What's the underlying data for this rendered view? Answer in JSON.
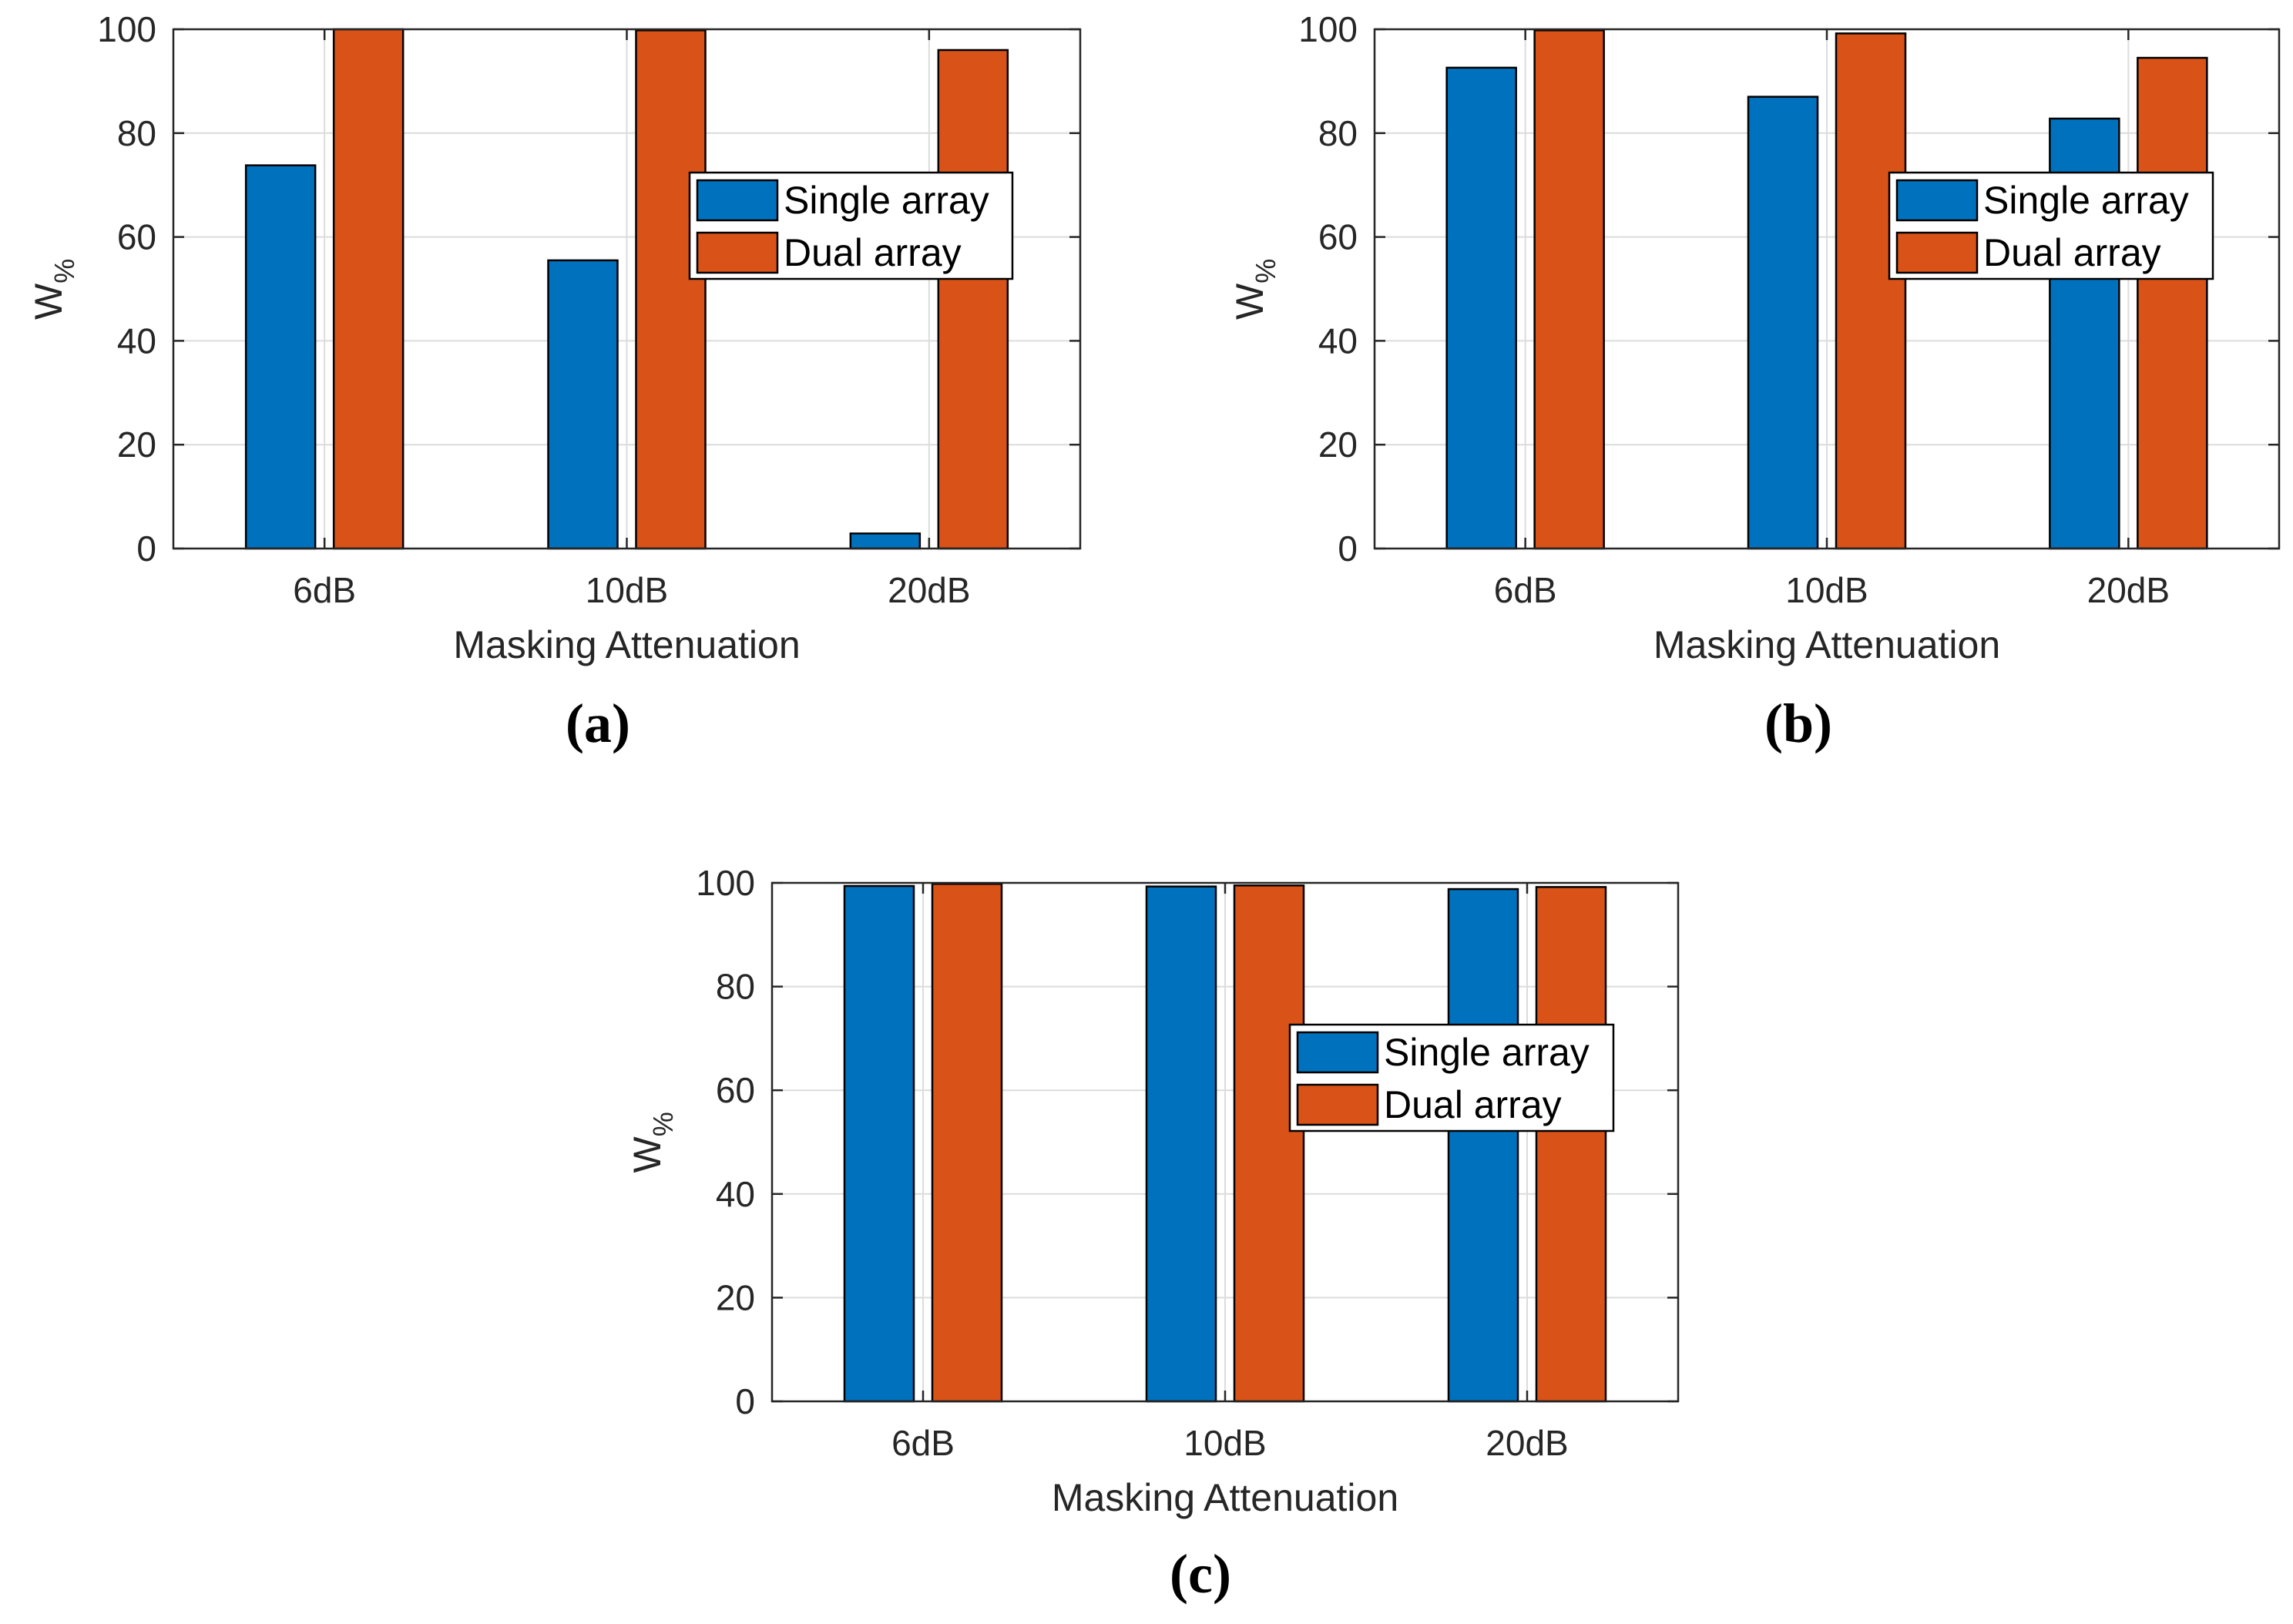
{
  "colors": {
    "single": "#0072BD",
    "dual": "#D95319",
    "grid": "#dcdcdc",
    "axis": "#262626"
  },
  "chart_data": [
    {
      "type": "bar",
      "panel_label": "(a)",
      "categories": [
        "6dB",
        "10dB",
        "20dB"
      ],
      "series": [
        {
          "name": "Single array",
          "values": [
            73.8,
            55.5,
            2.9
          ]
        },
        {
          "name": "Dual array",
          "values": [
            100,
            99.8,
            96
          ]
        }
      ],
      "xlabel": "Masking Attenuation",
      "ylabel_main": "W",
      "ylabel_sub": "%",
      "ylim": [
        0,
        100
      ],
      "yticks": [
        "0",
        "20",
        "40",
        "60",
        "80",
        "100"
      ],
      "grid": true,
      "legend": [
        "Single array",
        "Dual array"
      ],
      "legend_position": "right-center"
    },
    {
      "type": "bar",
      "panel_label": "(b)",
      "categories": [
        "6dB",
        "10dB",
        "20dB"
      ],
      "series": [
        {
          "name": "Single array",
          "values": [
            92.6,
            87.0,
            82.8
          ]
        },
        {
          "name": "Dual array",
          "values": [
            99.8,
            99.2,
            94.5
          ]
        }
      ],
      "xlabel": "Masking Attenuation",
      "ylabel_main": "W",
      "ylabel_sub": "%",
      "ylim": [
        0,
        100
      ],
      "yticks": [
        "0",
        "20",
        "40",
        "60",
        "80",
        "100"
      ],
      "grid": true,
      "legend": [
        "Single array",
        "Dual array"
      ],
      "legend_position": "right-center"
    },
    {
      "type": "bar",
      "panel_label": "(c)",
      "categories": [
        "6dB",
        "10dB",
        "20dB"
      ],
      "series": [
        {
          "name": "Single array",
          "values": [
            99.4,
            99.3,
            98.8
          ]
        },
        {
          "name": "Dual array",
          "values": [
            99.8,
            99.5,
            99.2
          ]
        }
      ],
      "xlabel": "Masking Attenuation",
      "ylabel_main": "W",
      "ylabel_sub": "%",
      "ylim": [
        0,
        100
      ],
      "yticks": [
        "0",
        "20",
        "40",
        "60",
        "80",
        "100"
      ],
      "grid": true,
      "legend": [
        "Single array",
        "Dual array"
      ],
      "legend_position": "right-center"
    }
  ]
}
